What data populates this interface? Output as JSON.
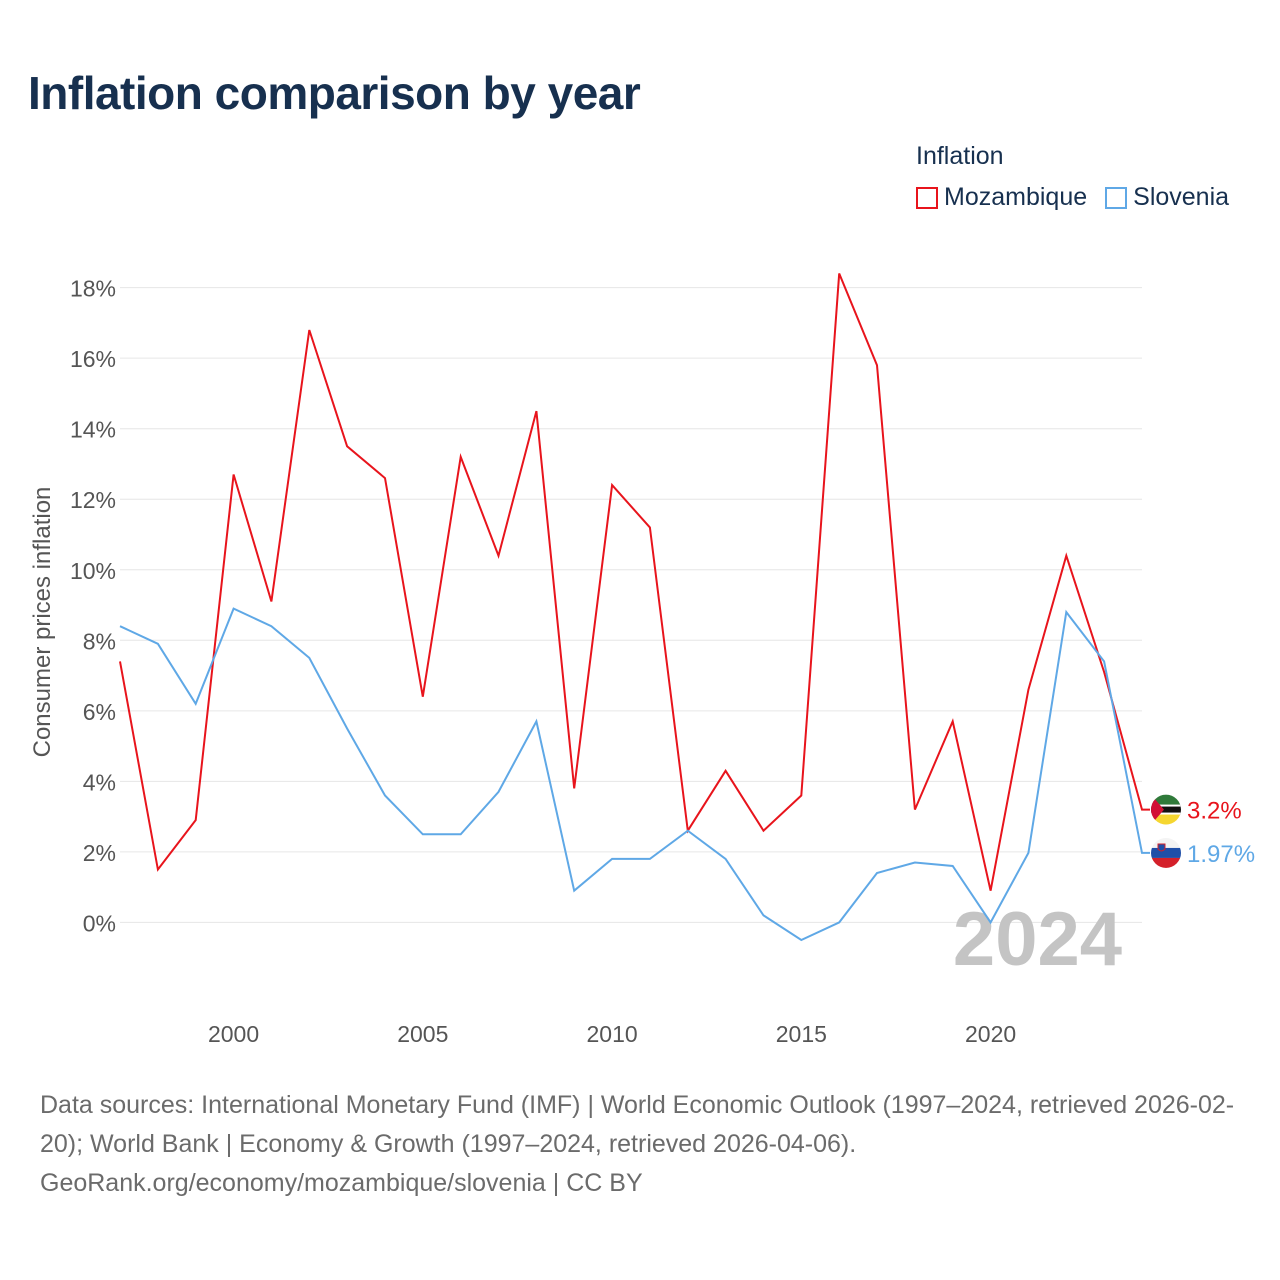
{
  "title": "Inflation comparison by year",
  "legend": {
    "title": "Inflation",
    "items": [
      {
        "label": "Mozambique",
        "color": "#e8141c"
      },
      {
        "label": "Slovenia",
        "color": "#5fa8e6"
      }
    ]
  },
  "chart_data": {
    "type": "line",
    "ylabel": "Consumer prices inflation",
    "xlabel": "",
    "x": [
      1997,
      1998,
      1999,
      2000,
      2001,
      2002,
      2003,
      2004,
      2005,
      2006,
      2007,
      2008,
      2009,
      2010,
      2011,
      2012,
      2013,
      2014,
      2015,
      2016,
      2017,
      2018,
      2019,
      2020,
      2021,
      2022,
      2023,
      2024
    ],
    "xlim": [
      1997,
      2024
    ],
    "ylim": [
      -2.2,
      18.5
    ],
    "yticks": [
      0,
      2,
      4,
      6,
      8,
      10,
      12,
      14,
      16,
      18
    ],
    "ytick_labels": [
      "0%",
      "2%",
      "4%",
      "6%",
      "8%",
      "10%",
      "12%",
      "14%",
      "16%",
      "18%"
    ],
    "xticks": [
      2000,
      2005,
      2010,
      2015,
      2020
    ],
    "xtick_labels": [
      "2000",
      "2005",
      "2010",
      "2015",
      "2020"
    ],
    "grid": true,
    "series": [
      {
        "name": "Mozambique",
        "color": "#e8141c",
        "values": [
          7.4,
          1.5,
          2.9,
          12.7,
          9.1,
          16.8,
          13.5,
          12.6,
          6.4,
          13.2,
          10.4,
          14.5,
          3.8,
          12.4,
          11.2,
          2.6,
          4.3,
          2.6,
          3.6,
          18.4,
          15.8,
          3.2,
          5.7,
          0.9,
          6.6,
          10.4,
          7.1,
          3.2
        ],
        "end_label": "3.2%"
      },
      {
        "name": "Slovenia",
        "color": "#5fa8e6",
        "values": [
          8.4,
          7.9,
          6.2,
          8.9,
          8.4,
          7.5,
          5.5,
          3.6,
          2.5,
          2.5,
          3.7,
          5.7,
          0.9,
          1.8,
          1.8,
          2.6,
          1.8,
          0.2,
          -0.5,
          0.0,
          1.4,
          1.7,
          1.6,
          0.0,
          1.97,
          8.8,
          7.4,
          1.97
        ],
        "end_label": "1.97%"
      }
    ],
    "year_watermark": "2024"
  },
  "sources": {
    "line1": "Data sources: International Monetary Fund (IMF) | World Economic Outlook (1997–2024, retrieved 2026-02-20); World Bank | Economy & Growth (1997–2024, retrieved 2026-04-06).",
    "line2": "GeoRank.org/economy/mozambique/slovenia | CC BY"
  }
}
